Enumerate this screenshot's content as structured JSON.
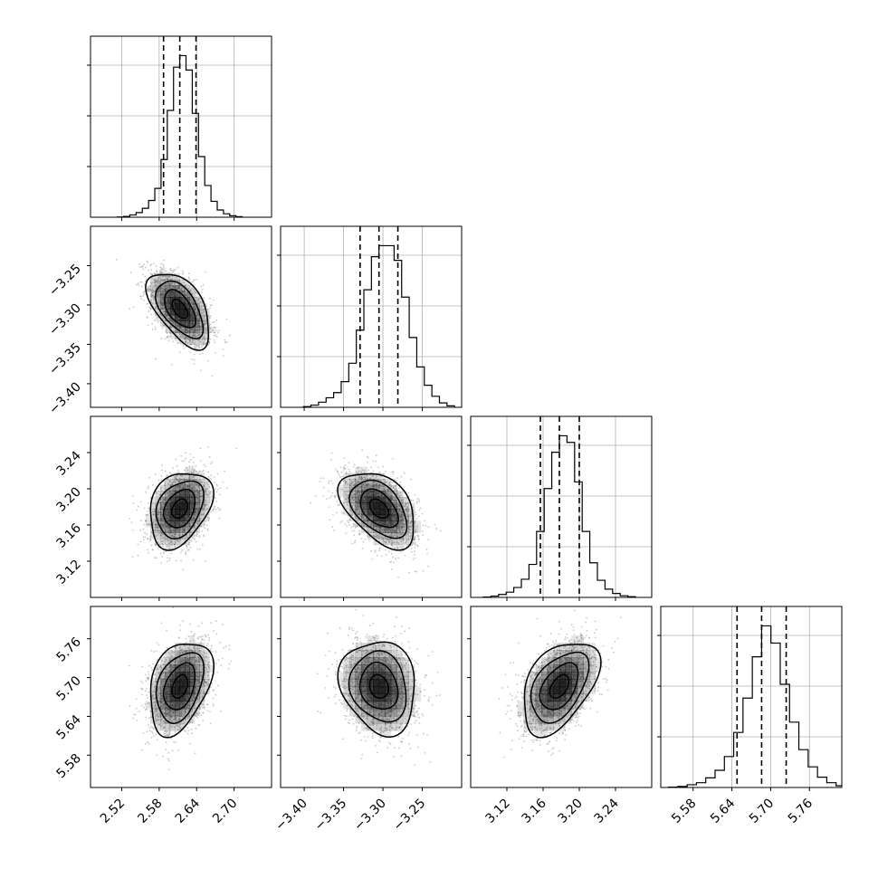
{
  "chart_data": {
    "type": "corner",
    "title": "",
    "grid": true,
    "parameters": [
      {
        "name": "",
        "range": [
          2.47,
          2.76
        ],
        "ticks": [
          2.52,
          2.58,
          2.64,
          2.7
        ],
        "tick_labels": [
          "2.52",
          "2.58",
          "2.64",
          "2.70"
        ],
        "mean": 2.613,
        "sd": 0.025,
        "quantiles": [
          2.587,
          2.613,
          2.639
        ],
        "hist_counts": [
          1,
          3,
          8,
          16,
          31,
          58,
          100,
          200,
          370,
          520,
          560,
          510,
          360,
          210,
          110,
          55,
          25,
          12,
          5,
          2
        ]
      },
      {
        "name": "",
        "range": [
          -3.43,
          -3.2
        ],
        "ticks": [
          -3.4,
          -3.35,
          -3.3,
          -3.25
        ],
        "tick_labels": [
          "−3.40",
          "−3.35",
          "−3.30",
          "−3.25"
        ],
        "mean": -3.305,
        "sd": 0.024,
        "quantiles": [
          -3.329,
          -3.305,
          -3.281
        ],
        "hist_counts": [
          2,
          6,
          14,
          26,
          40,
          70,
          120,
          210,
          320,
          410,
          440,
          440,
          400,
          300,
          190,
          110,
          60,
          30,
          12,
          4
        ]
      },
      {
        "name": "",
        "range": [
          3.08,
          3.28
        ],
        "ticks": [
          3.12,
          3.16,
          3.2,
          3.24
        ],
        "tick_labels": [
          "3.12",
          "3.16",
          "3.20",
          "3.24"
        ],
        "mean": 3.178,
        "sd": 0.021,
        "quantiles": [
          3.157,
          3.178,
          3.2
        ],
        "hist_counts": [
          1,
          4,
          9,
          16,
          30,
          55,
          100,
          200,
          330,
          440,
          490,
          470,
          350,
          200,
          105,
          52,
          25,
          12,
          5,
          2
        ]
      },
      {
        "name": "",
        "range": [
          5.53,
          5.81
        ],
        "ticks": [
          5.58,
          5.64,
          5.7,
          5.76
        ],
        "tick_labels": [
          "5.58",
          "5.64",
          "5.70",
          "5.76"
        ],
        "mean": 5.686,
        "sd": 0.036,
        "quantiles": [
          5.648,
          5.686,
          5.724
        ],
        "hist_counts": [
          1,
          3,
          8,
          14,
          28,
          50,
          90,
          160,
          260,
          380,
          470,
          420,
          300,
          190,
          110,
          60,
          30,
          14,
          5,
          2
        ]
      }
    ],
    "correlations": {
      "1-0": -0.55,
      "2-0": 0.3,
      "2-1": -0.45,
      "3-0": 0.35,
      "3-1": -0.15,
      "3-2": 0.45
    },
    "contour_sigma_levels": [
      0.5,
      1.0,
      1.5,
      2.0
    ],
    "colors": {
      "line": "#000000",
      "points": "#9a9a9a",
      "grid": "#b0b0b0",
      "density": "#000000"
    }
  }
}
